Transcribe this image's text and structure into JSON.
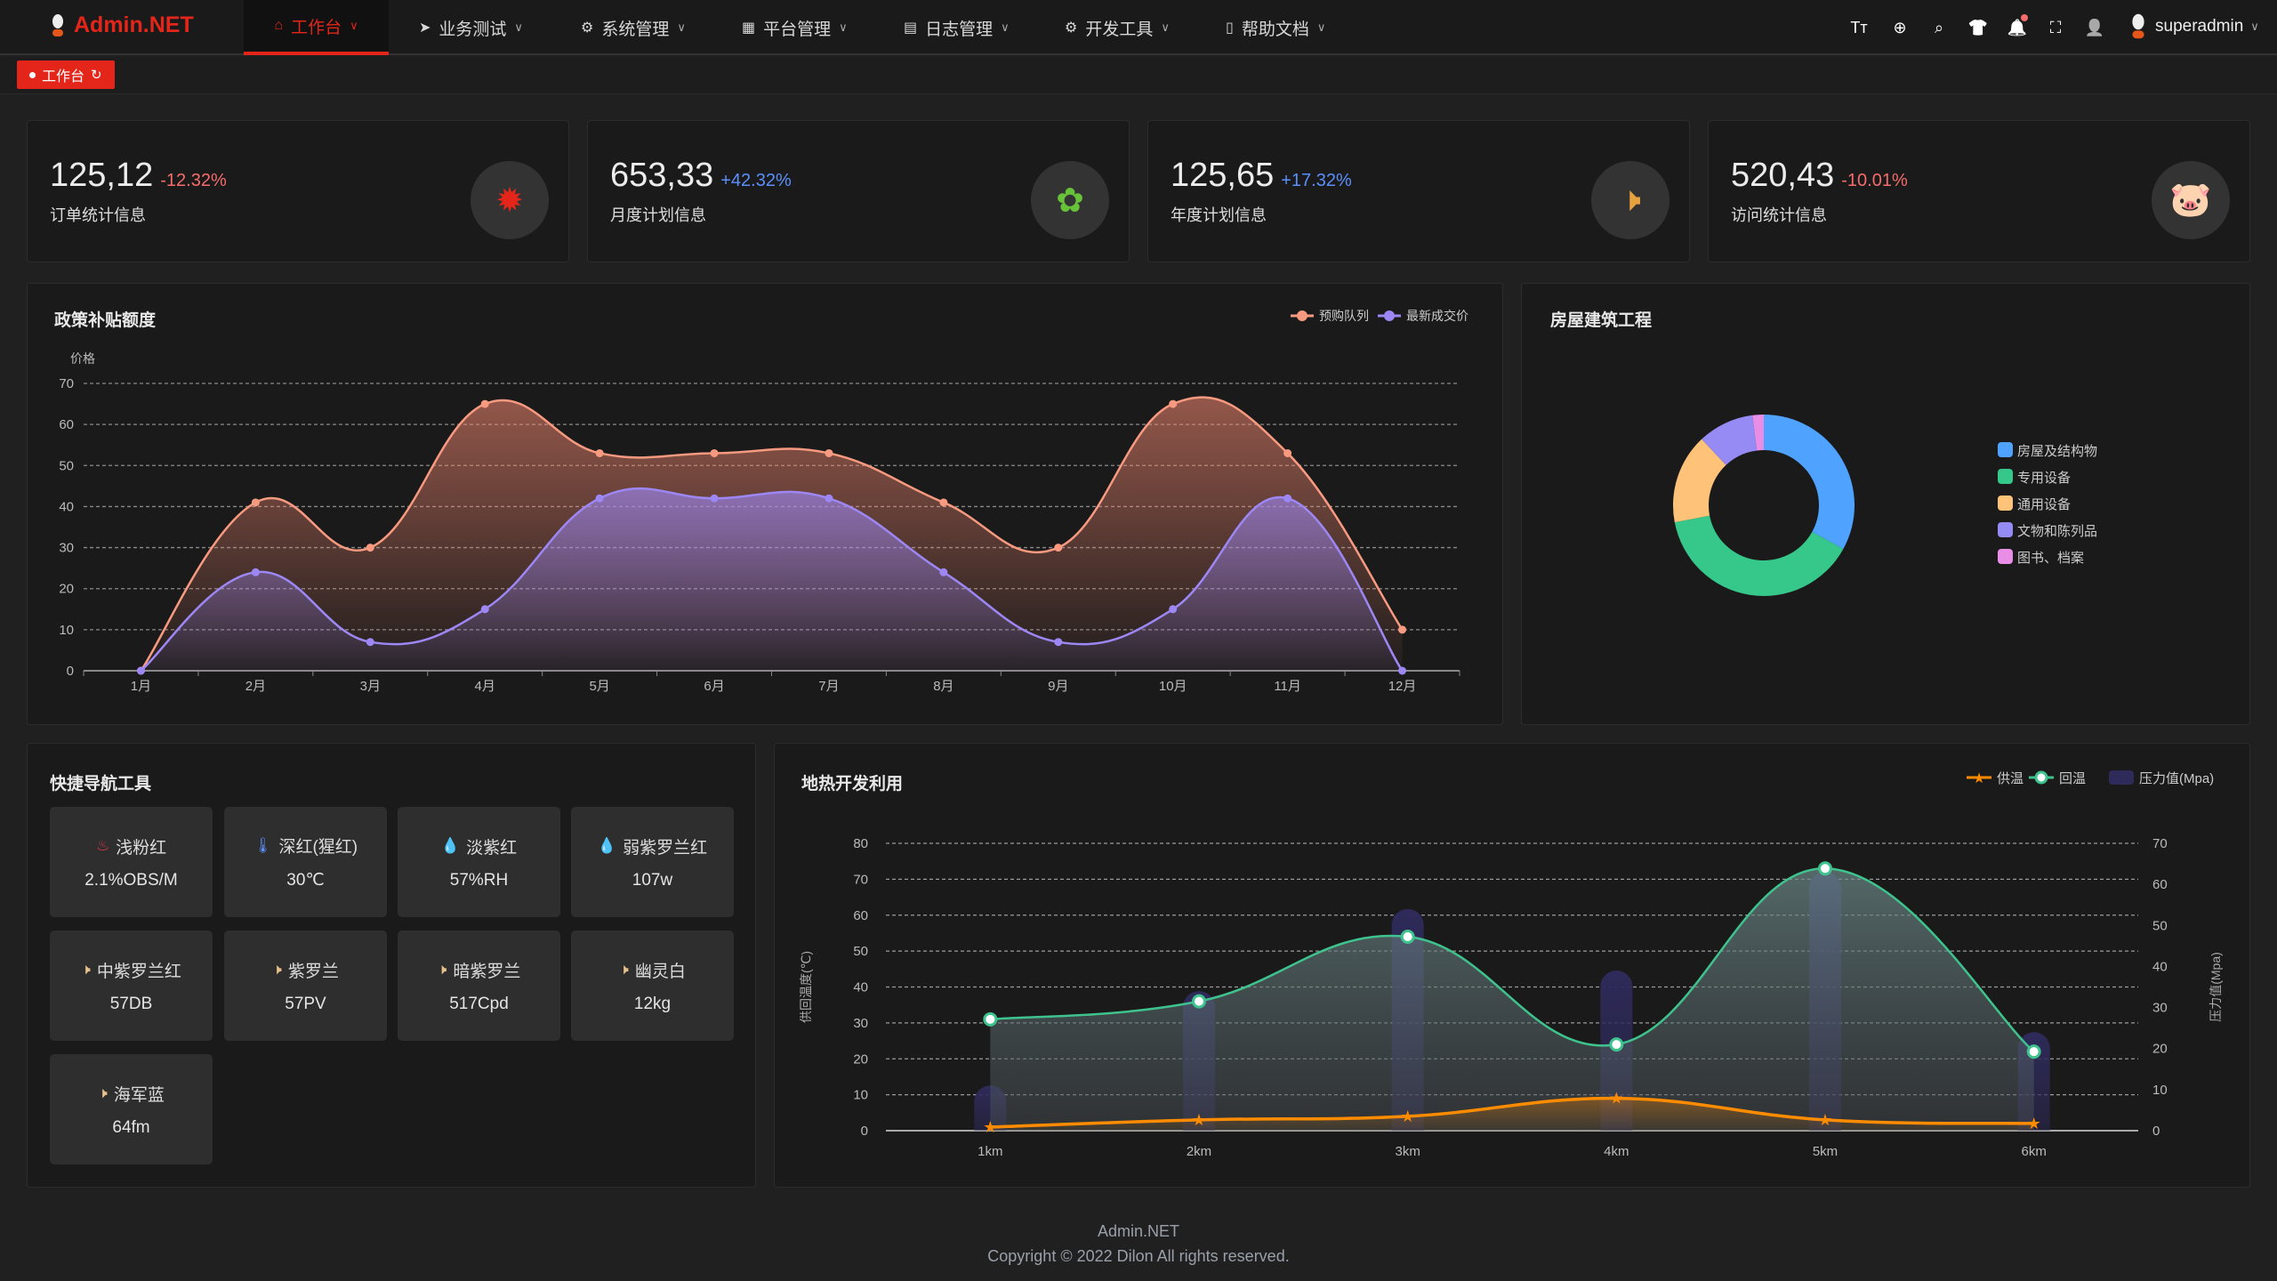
{
  "header": {
    "logo": "Admin.NET",
    "nav": [
      {
        "label": "工作台",
        "icon": "home-icon",
        "active": true
      },
      {
        "label": "业务测试",
        "icon": "send-icon"
      },
      {
        "label": "系统管理",
        "icon": "gear-icon"
      },
      {
        "label": "平台管理",
        "icon": "grid-icon"
      },
      {
        "label": "日志管理",
        "icon": "document-icon"
      },
      {
        "label": "开发工具",
        "icon": "chip-icon"
      },
      {
        "label": "帮助文档",
        "icon": "book-icon"
      }
    ],
    "tools": [
      "font-size-icon",
      "language-icon",
      "search-icon",
      "skin-icon",
      "bell-icon",
      "fullscreen-icon",
      "user-icon"
    ],
    "username": "superadmin"
  },
  "tags": {
    "active": "工作台"
  },
  "stats": [
    {
      "value": "125,12",
      "change": "-12.32%",
      "change_color": "#f56c6c",
      "label": "订单统计信息",
      "icon": "fire-icon",
      "icon_color": "#e4261a"
    },
    {
      "value": "653,33",
      "change": "+42.32%",
      "change_color": "#5b8ff9",
      "label": "月度计划信息",
      "icon": "china-map-icon",
      "icon_color": "#67c23a"
    },
    {
      "value": "125,65",
      "change": "+17.32%",
      "change_color": "#5b8ff9",
      "label": "年度计划信息",
      "icon": "speaker-icon",
      "icon_color": "#e6a23c"
    },
    {
      "value": "520,43",
      "change": "-10.01%",
      "change_color": "#f56c6c",
      "label": "访问统计信息",
      "icon": "pig-icon",
      "icon_color": "#f56c6c"
    }
  ],
  "chart_data": [
    {
      "type": "area",
      "title": "政策补贴额度",
      "ylabel": "价格",
      "ylim": [
        0,
        70
      ],
      "yticks": [
        0,
        10,
        20,
        30,
        40,
        50,
        60,
        70
      ],
      "grid": true,
      "legend_position": "top-right",
      "categories": [
        "1月",
        "2月",
        "3月",
        "4月",
        "5月",
        "6月",
        "7月",
        "8月",
        "9月",
        "10月",
        "11月",
        "12月"
      ],
      "series": [
        {
          "name": "预购队列",
          "color": "#f89a80",
          "values": [
            0,
            41,
            30,
            65,
            53,
            53,
            53,
            41,
            30,
            65,
            53,
            10
          ]
        },
        {
          "name": "最新成交价",
          "color": "#9d87f5",
          "values": [
            0,
            24,
            7,
            15,
            42,
            42,
            42,
            24,
            7,
            15,
            42,
            0
          ]
        }
      ]
    },
    {
      "type": "pie",
      "title": "房屋建筑工程",
      "legend_position": "right",
      "categories": [
        "房屋及结构物",
        "专用设备",
        "通用设备",
        "文物和陈列品",
        "图书、档案"
      ],
      "values": [
        33,
        39,
        16,
        10,
        2
      ],
      "colors": [
        "#4fa3ff",
        "#36c78b",
        "#fec279",
        "#968af5",
        "#e88ee6"
      ]
    },
    {
      "type": "line",
      "title": "地热开发利用",
      "ylabel": "供回温度(℃)",
      "y2label": "压力值(Mpa)",
      "ylim": [
        0,
        80
      ],
      "y2lim": [
        0,
        70
      ],
      "yticks": [
        0,
        10,
        20,
        30,
        40,
        50,
        60,
        70,
        80
      ],
      "y2ticks": [
        0,
        10,
        20,
        30,
        40,
        50,
        60,
        70
      ],
      "grid": true,
      "legend_position": "top-right",
      "categories": [
        "1km",
        "2km",
        "3km",
        "4km",
        "5km",
        "6km"
      ],
      "series": [
        {
          "name": "供温",
          "type": "line",
          "color": "#ff8c00",
          "values": [
            1,
            3,
            4,
            9,
            3,
            2
          ]
        },
        {
          "name": "回温",
          "type": "line",
          "color": "#3fc38e",
          "values": [
            31,
            36,
            54,
            24,
            73,
            22
          ]
        },
        {
          "name": "压力值(Mpa)",
          "type": "bar",
          "axis": "right",
          "color": "#2e2a5a",
          "values": [
            11,
            34,
            54,
            39,
            63,
            24
          ]
        }
      ]
    }
  ],
  "quicknav": {
    "title": "快捷导航工具",
    "items": [
      {
        "label": "浅粉红",
        "value": "2.1%OBS/M",
        "icon": "heater-icon",
        "color": "#e4364a"
      },
      {
        "label": "深红(猩红)",
        "value": "30℃",
        "icon": "thermometer-icon",
        "color": "#5b8ff9"
      },
      {
        "label": "淡紫红",
        "value": "57%RH",
        "icon": "drops-icon",
        "color": "#67c23a"
      },
      {
        "label": "弱紫罗兰红",
        "value": "107w",
        "icon": "drops-icon",
        "color": "#67c23a"
      },
      {
        "label": "中紫罗兰红",
        "value": "57DB",
        "icon": "speaker-icon",
        "color": "#e6c08a"
      },
      {
        "label": "紫罗兰",
        "value": "57PV",
        "icon": "speaker-icon",
        "color": "#e6c08a"
      },
      {
        "label": "暗紫罗兰",
        "value": "517Cpd",
        "icon": "speaker-icon",
        "color": "#e6c08a"
      },
      {
        "label": "幽灵白",
        "value": "12kg",
        "icon": "speaker-icon",
        "color": "#e6c08a"
      },
      {
        "label": "海军蓝",
        "value": "64fm",
        "icon": "speaker-icon",
        "color": "#e6c08a"
      }
    ]
  },
  "footer": {
    "line1": "Admin.NET",
    "line2": "Copyright © 2022 Dilon All rights reserved."
  }
}
